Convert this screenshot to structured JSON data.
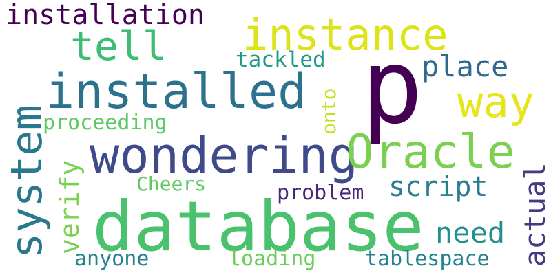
{
  "word_cloud": {
    "background": "#ffffff",
    "words": [
      {
        "key": "installation",
        "text": "installation",
        "color": "#440154",
        "orientation": "horizontal"
      },
      {
        "key": "instance",
        "text": "instance",
        "color": "#dde318",
        "orientation": "horizontal"
      },
      {
        "key": "tell",
        "text": "tell",
        "color": "#3dbc74",
        "orientation": "horizontal"
      },
      {
        "key": "p",
        "text": "p",
        "color": "#440154",
        "orientation": "horizontal"
      },
      {
        "key": "tackled",
        "text": "tackled",
        "color": "#1f9a8a",
        "orientation": "horizontal"
      },
      {
        "key": "place",
        "text": "place",
        "color": "#31688e",
        "orientation": "horizontal"
      },
      {
        "key": "installed",
        "text": "installed",
        "color": "#2c728e",
        "orientation": "horizontal"
      },
      {
        "key": "way",
        "text": "way",
        "color": "#e7e419",
        "orientation": "horizontal"
      },
      {
        "key": "system",
        "text": "system",
        "color": "#2a788e",
        "orientation": "vertical"
      },
      {
        "key": "proceeding",
        "text": "proceeding",
        "color": "#5ec962",
        "orientation": "horizontal"
      },
      {
        "key": "verify",
        "text": "verify",
        "color": "#7ad151",
        "orientation": "vertical"
      },
      {
        "key": "onto",
        "text": "onto",
        "color": "#c2df23",
        "orientation": "vertical"
      },
      {
        "key": "wondering",
        "text": "wondering",
        "color": "#3e4a89",
        "orientation": "horizontal"
      },
      {
        "key": "oracle",
        "text": "Oracle",
        "color": "#7ad151",
        "orientation": "horizontal"
      },
      {
        "key": "actual",
        "text": "actual",
        "color": "#443983",
        "orientation": "vertical"
      },
      {
        "key": "cheers",
        "text": "Cheers",
        "color": "#5ec962",
        "orientation": "horizontal"
      },
      {
        "key": "script",
        "text": "script",
        "color": "#287d8e",
        "orientation": "horizontal"
      },
      {
        "key": "problem",
        "text": "problem",
        "color": "#482878",
        "orientation": "horizontal"
      },
      {
        "key": "database",
        "text": "database",
        "color": "#4ac16d",
        "orientation": "horizontal"
      },
      {
        "key": "need",
        "text": "need",
        "color": "#21908d",
        "orientation": "horizontal"
      },
      {
        "key": "anyone",
        "text": "anyone",
        "color": "#26828e",
        "orientation": "horizontal"
      },
      {
        "key": "loading",
        "text": "loading",
        "color": "#6ccd5a",
        "orientation": "horizontal"
      },
      {
        "key": "tablespace",
        "text": "tablespace",
        "color": "#25838e",
        "orientation": "horizontal"
      }
    ]
  }
}
